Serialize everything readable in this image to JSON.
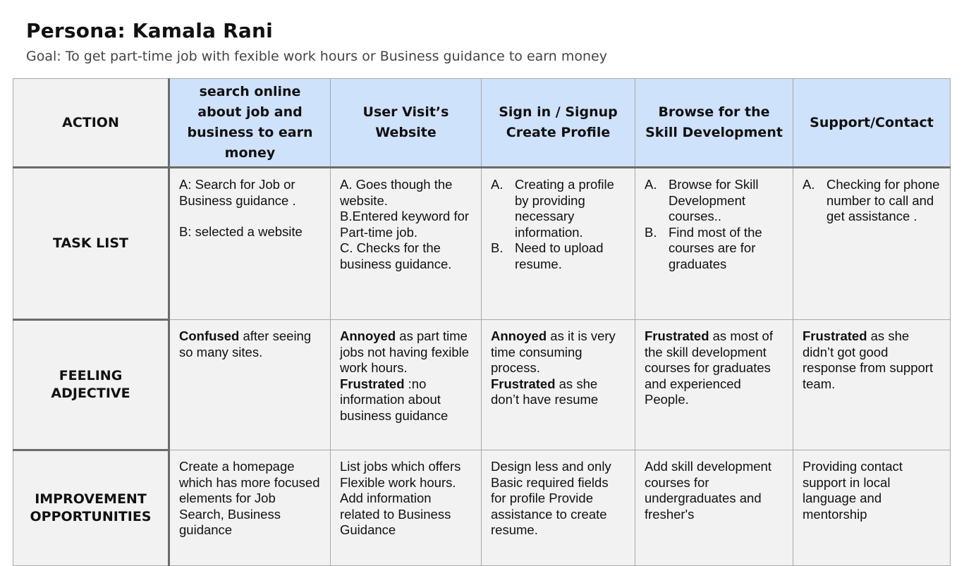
{
  "page": {
    "title": "Persona: Kamala Rani",
    "goal": "Goal: To get part-time job with fexible work hours or Business guidance to earn money"
  },
  "row_labels": {
    "action": "ACTION",
    "task_list": "TASK LIST",
    "feeling": "FEELING ADJECTIVE",
    "improvement": "IMPROVEMENT OPPORTUNITIES"
  },
  "stages": [
    {
      "heading": "search online about job and business to earn money",
      "tasks": {
        "a": "A: Search for Job or Business guidance .",
        "b": "B: selected a website"
      },
      "feeling": {
        "strong1": "Confused",
        "text1": " after seeing so many sites."
      },
      "improvement": "Create a homepage which has more focused elements for Job Search, Business guidance"
    },
    {
      "heading": "User Visit’s Website",
      "tasks": {
        "a": "A. Goes though the website.",
        "b": "B.Entered keyword for Part-time job.",
        "c": "C. Checks for the business guidance."
      },
      "feeling": {
        "strong1": "Annoyed",
        "text1": " as part time jobs not having fexible work hours.",
        "strong2": "Frustrated",
        "text2": " :no information about business guidance"
      },
      "improvement": "List jobs which offers Flexible work hours. Add information related to Business Guidance"
    },
    {
      "heading": "Sign in / Signup Create Profile",
      "tasks": {
        "marker_a": "A.",
        "a": "Creating a profile by providing necessary information.",
        "marker_b": "B.",
        "b": "Need to upload resume."
      },
      "feeling": {
        "strong1": "Annoyed",
        "text1": "  as it is very time consuming process.",
        "strong2": "Frustrated",
        "text2": " as she don’t have resume"
      },
      "improvement": "Design less and only Basic required fields for profile Provide assistance to create resume."
    },
    {
      "heading": "Browse for the Skill Development",
      "tasks": {
        "marker_a": "A.",
        "a": "Browse for Skill Development courses..",
        "marker_b": "B.",
        "b": "Find most of the courses are for graduates"
      },
      "feeling": {
        "strong1": "Frustrated",
        "text1": " as most of the skill development courses for graduates and experienced People."
      },
      "improvement": "Add skill development courses for undergraduates and fresher's"
    },
    {
      "heading": "Support/Contact",
      "tasks": {
        "marker_a": "A.",
        "a": "Checking for phone number to call and get assistance ."
      },
      "feeling": {
        "strong1": "Frustrated",
        "text1": " as she didn’t got good response from support team."
      },
      "improvement": "Providing contact support in local language and mentorship"
    }
  ]
}
